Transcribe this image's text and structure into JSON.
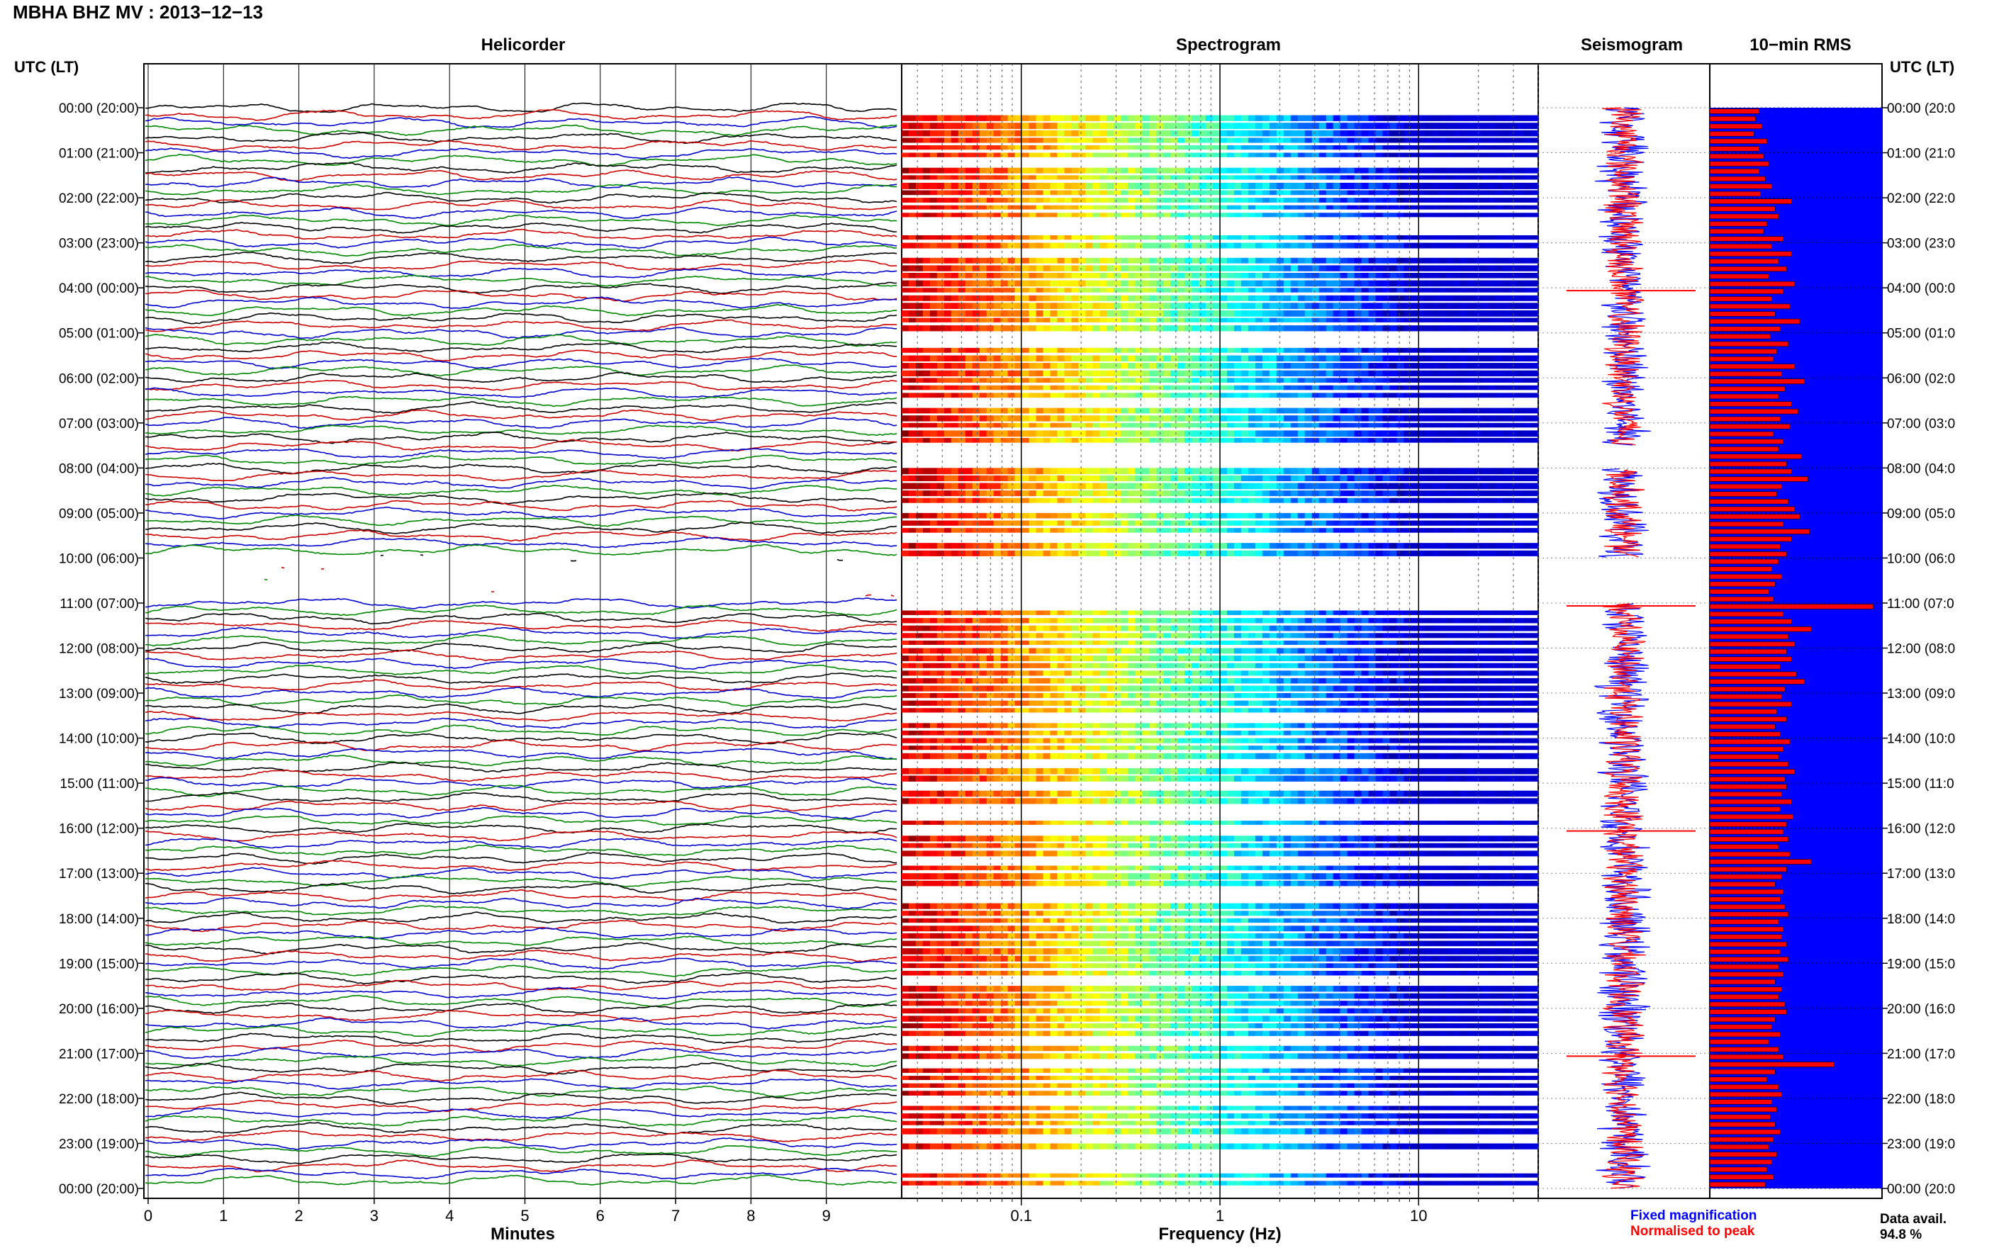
{
  "figure": {
    "title": "MBHA BHZ MV : 2013−12−13",
    "time_axis_header": "UTC (LT)",
    "time_labels": [
      "00:00 (20:00)",
      "01:00 (21:00)",
      "02:00 (22:00)",
      "03:00 (23:00)",
      "04:00 (00:00)",
      "05:00 (01:00)",
      "06:00 (02:00)",
      "07:00 (03:00)",
      "08:00 (04:00)",
      "09:00 (05:00)",
      "10:00 (06:00)",
      "11:00 (07:00)",
      "12:00 (08:00)",
      "13:00 (09:00)",
      "14:00 (10:00)",
      "15:00 (11:00)",
      "16:00 (12:00)",
      "17:00 (13:00)",
      "18:00 (14:00)",
      "19:00 (15:00)",
      "20:00 (16:00)",
      "21:00 (17:00)",
      "22:00 (18:00)",
      "23:00 (19:00)",
      "00:00 (20:00)"
    ],
    "right_time_labels": [
      "00:00 (20:0",
      "01:00 (21:0",
      "02:00 (22:0",
      "03:00 (23:0",
      "04:00 (00:0",
      "05:00 (01:0",
      "06:00 (02:0",
      "07:00 (03:0",
      "08:00 (04:0",
      "09:00 (05:0",
      "10:00 (06:0",
      "11:00 (07:0",
      "12:00 (08:0",
      "13:00 (09:0",
      "14:00 (10:0",
      "15:00 (11:0",
      "16:00 (12:0",
      "17:00 (13:0",
      "18:00 (14:0",
      "19:00 (15:0",
      "20:00 (16:0",
      "21:00 (17:0",
      "22:00 (18:0",
      "23:00 (19:0",
      "00:00 (20:0"
    ]
  },
  "panels": {
    "helicorder": "Helicorder",
    "spectrogram": "Spectrogram",
    "seismogram": "Seismogram",
    "rms": "10−min RMS"
  },
  "legend": {
    "fixed": "Fixed magnification",
    "normalised": "Normalised to peak",
    "data_avail_label": "Data avail.",
    "data_avail_value": "94.8 %"
  },
  "colors": {
    "helicorder_traces": [
      "#000000",
      "#cc0000",
      "#0000cc",
      "#008800"
    ],
    "seismogram_fixed": "#0000ff",
    "seismogram_normalised": "#ff0000",
    "rms_background": "#0000ff",
    "rms_bars": "#ff0000",
    "spectrogram_colormap": "jet"
  },
  "chart_data": [
    {
      "type": "line",
      "panel": "Helicorder",
      "xlabel": "Minutes",
      "x_ticks": [
        0,
        1,
        2,
        3,
        4,
        5,
        6,
        7,
        8,
        9
      ],
      "xlim": [
        0,
        10
      ],
      "traces_per_hour": 6,
      "hours": 24,
      "gaps": [
        {
          "start": "10:00",
          "end": "11:00"
        }
      ]
    },
    {
      "type": "heatmap",
      "panel": "Spectrogram",
      "xlabel": "Frequency (Hz)",
      "x_scale": "log",
      "x_ticks": [
        0.1,
        1,
        10
      ],
      "x_tick_labels": [
        "0.1",
        "1",
        "10"
      ],
      "xlim": [
        0.025,
        40
      ],
      "rows": 144,
      "gaps": [
        {
          "start": "07:30",
          "end": "08:00"
        },
        {
          "start": "10:00",
          "end": "11:00"
        }
      ]
    },
    {
      "type": "line",
      "panel": "Seismogram",
      "series": [
        {
          "name": "Fixed magnification"
        },
        {
          "name": "Normalised to peak"
        }
      ],
      "spikes": [
        "04:00",
        "11:00",
        "16:00",
        "21:00"
      ]
    },
    {
      "type": "bar",
      "panel": "10−min RMS",
      "orientation": "horizontal",
      "bins_per_hour": 6,
      "relative_values": [
        0.3,
        0.28,
        0.32,
        0.27,
        0.35,
        0.3,
        0.33,
        0.36,
        0.3,
        0.34,
        0.38,
        0.31,
        0.5,
        0.4,
        0.42,
        0.35,
        0.33,
        0.45,
        0.38,
        0.5,
        0.42,
        0.47,
        0.36,
        0.52,
        0.45,
        0.38,
        0.49,
        0.4,
        0.55,
        0.43,
        0.37,
        0.48,
        0.41,
        0.39,
        0.52,
        0.44,
        0.58,
        0.46,
        0.42,
        0.5,
        0.54,
        0.43,
        0.49,
        0.39,
        0.45,
        0.42,
        0.56,
        0.47,
        0.5,
        0.6,
        0.44,
        0.41,
        0.48,
        0.52,
        0.55,
        0.45,
        0.61,
        0.5,
        0.43,
        0.47,
        0.42,
        0.38,
        0.44,
        0.4,
        0.36,
        0.39,
        1.0,
        0.45,
        0.5,
        0.62,
        0.48,
        0.52,
        0.47,
        0.5,
        0.43,
        0.53,
        0.58,
        0.46,
        0.44,
        0.5,
        0.41,
        0.47,
        0.4,
        0.43,
        0.49,
        0.45,
        0.42,
        0.48,
        0.52,
        0.46,
        0.47,
        0.44,
        0.5,
        0.43,
        0.51,
        0.47,
        0.45,
        0.48,
        0.42,
        0.49,
        0.62,
        0.47,
        0.44,
        0.4,
        0.45,
        0.43,
        0.46,
        0.48,
        0.42,
        0.45,
        0.44,
        0.47,
        0.43,
        0.48,
        0.42,
        0.45,
        0.4,
        0.44,
        0.42,
        0.46,
        0.47,
        0.4,
        0.38,
        0.43,
        0.36,
        0.42,
        0.45,
        0.76,
        0.4,
        0.35,
        0.42,
        0.44,
        0.38,
        0.41,
        0.37,
        0.4,
        0.43,
        0.39,
        0.36,
        0.41,
        0.38,
        0.35,
        0.39,
        0.34
      ]
    }
  ]
}
